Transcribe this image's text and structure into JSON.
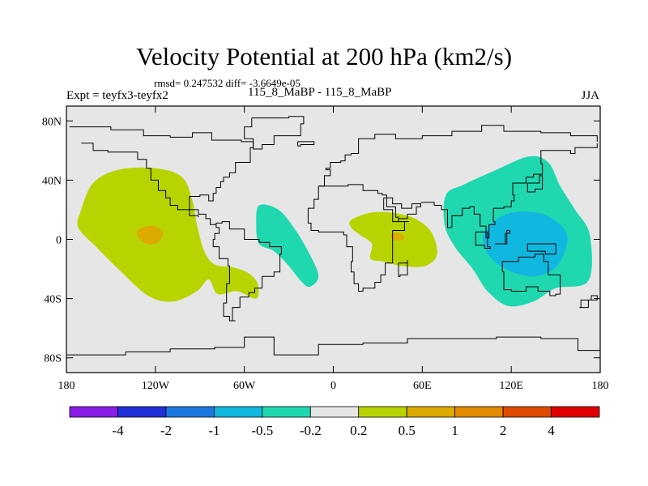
{
  "header": {
    "title": "Velocity Potential at 200 hPa (km2/s)",
    "stats": "rmsd= 0.247532 diff= -3.6649e-05",
    "expt": "Expt = teyfx3-teyfx2",
    "case": "115_8_MaBP - 115_8_MaBP",
    "season": "JJA"
  },
  "colors": {
    "ocean_bg": "#e6e6e6",
    "coast": "#000000",
    "pos_0_2_0_5": "#b8d400",
    "pos_0_5_1": "#ddaa00",
    "pos_1_2": "#e28a00",
    "neg_0_2_0_5": "#20d8b0",
    "neg_0_5_1": "#10b8e0"
  },
  "chart_data": {
    "type": "heatmap",
    "title": "Velocity Potential at 200 hPa (km2/s)",
    "xlabel": "",
    "ylabel": "",
    "xlim": [
      -180,
      180
    ],
    "ylim": [
      -90,
      90
    ],
    "x_ticks": [
      {
        "value": -180,
        "label": "180"
      },
      {
        "value": -120,
        "label": "120W"
      },
      {
        "value": -60,
        "label": "60W"
      },
      {
        "value": 0,
        "label": "0"
      },
      {
        "value": 60,
        "label": "60E"
      },
      {
        "value": 120,
        "label": "120E"
      },
      {
        "value": 180,
        "label": "180"
      }
    ],
    "y_ticks": [
      {
        "value": 80,
        "label": "80N"
      },
      {
        "value": 40,
        "label": "40N"
      },
      {
        "value": 0,
        "label": "0"
      },
      {
        "value": -40,
        "label": "40S"
      },
      {
        "value": -80,
        "label": "80S"
      }
    ],
    "colorbar": {
      "colors": [
        "#8a1ee8",
        "#2030d8",
        "#1c78e0",
        "#10b8e0",
        "#20d8b0",
        "#e6e6e6",
        "#b8d400",
        "#ddaa00",
        "#e28a00",
        "#e04a00",
        "#e00000"
      ],
      "labels": [
        "-4",
        "-2",
        "-1",
        "-0.5",
        "-0.2",
        "0.2",
        "0.5",
        "1",
        "2",
        "4"
      ]
    },
    "regions": [
      {
        "name": "positive-anomaly-pacific",
        "level": "0.2 to 0.5",
        "color": "#b8d400",
        "points": [
          [
            -170,
            20
          ],
          [
            -162,
            38
          ],
          [
            -145,
            47
          ],
          [
            -120,
            48
          ],
          [
            -102,
            42
          ],
          [
            -95,
            26
          ],
          [
            -92,
            10
          ],
          [
            -87,
            -8
          ],
          [
            -80,
            -17
          ],
          [
            -67,
            -19
          ],
          [
            -57,
            -23
          ],
          [
            -51,
            -30
          ],
          [
            -52,
            -40
          ],
          [
            -65,
            -35
          ],
          [
            -78,
            -37
          ],
          [
            -84,
            -27
          ],
          [
            -92,
            -35
          ],
          [
            -108,
            -42
          ],
          [
            -125,
            -38
          ],
          [
            -145,
            -20
          ],
          [
            -160,
            -5
          ],
          [
            -172,
            8
          ]
        ]
      },
      {
        "name": "positive-anomaly-pacific-core",
        "level": "0.5 to 1",
        "color": "#ddaa00",
        "points": [
          [
            -131,
            7
          ],
          [
            -122,
            9
          ],
          [
            -115,
            5
          ],
          [
            -118,
            -2
          ],
          [
            -126,
            -3
          ],
          [
            -132,
            2
          ]
        ]
      },
      {
        "name": "negative-anomaly-atlantic",
        "level": "-0.5 to -0.2",
        "color": "#20d8b0",
        "points": [
          [
            -50,
            23
          ],
          [
            -37,
            20
          ],
          [
            -26,
            7
          ],
          [
            -16,
            -10
          ],
          [
            -10,
            -25
          ],
          [
            -16,
            -32
          ],
          [
            -22,
            -28
          ],
          [
            -30,
            -18
          ],
          [
            -40,
            -8
          ],
          [
            -50,
            -3
          ],
          [
            -52,
            10
          ]
        ]
      },
      {
        "name": "positive-anomaly-africa",
        "level": "0.2 to 0.5",
        "color": "#b8d400",
        "points": [
          [
            12,
            13
          ],
          [
            25,
            18
          ],
          [
            40,
            18
          ],
          [
            55,
            14
          ],
          [
            66,
            5
          ],
          [
            70,
            -10
          ],
          [
            62,
            -18
          ],
          [
            46,
            -18
          ],
          [
            34,
            -15
          ],
          [
            25,
            -13
          ],
          [
            26,
            -3
          ],
          [
            18,
            3
          ],
          [
            12,
            8
          ]
        ]
      },
      {
        "name": "positive-anomaly-africa-core",
        "level": "0.5 to 1",
        "color": "#ddaa00",
        "points": [
          [
            40,
            4
          ],
          [
            45,
            4
          ],
          [
            48,
            1
          ],
          [
            44,
            -1
          ],
          [
            39,
            1
          ]
        ]
      },
      {
        "name": "negative-anomaly-asia",
        "level": "-0.5 to -0.2",
        "color": "#20d8b0",
        "points": [
          [
            88,
            37
          ],
          [
            110,
            47
          ],
          [
            132,
            56
          ],
          [
            145,
            52
          ],
          [
            153,
            36
          ],
          [
            163,
            20
          ],
          [
            173,
            3
          ],
          [
            172,
            -28
          ],
          [
            150,
            -33
          ],
          [
            135,
            -42
          ],
          [
            118,
            -45
          ],
          [
            104,
            -35
          ],
          [
            94,
            -20
          ],
          [
            82,
            -5
          ],
          [
            75,
            10
          ],
          [
            76,
            30
          ]
        ]
      },
      {
        "name": "negative-anomaly-asia-core",
        "level": "-1 to -0.5",
        "color": "#10b8e0",
        "points": [
          [
            108,
            12
          ],
          [
            120,
            18
          ],
          [
            138,
            18
          ],
          [
            152,
            11
          ],
          [
            158,
            0
          ],
          [
            151,
            -18
          ],
          [
            136,
            -25
          ],
          [
            118,
            -21
          ],
          [
            105,
            -11
          ],
          [
            101,
            2
          ]
        ]
      }
    ],
    "coastlines": [
      [
        [
          -178,
          76
        ],
        [
          -150,
          74
        ],
        [
          -128,
          70
        ],
        [
          -110,
          69
        ],
        [
          -95,
          72
        ],
        [
          -82,
          67
        ],
        [
          -62,
          66
        ],
        [
          -54,
          62
        ],
        [
          -56,
          52
        ],
        [
          -66,
          45
        ],
        [
          -70,
          42
        ],
        [
          -74,
          39
        ],
        [
          -76,
          35
        ],
        [
          -79,
          31
        ],
        [
          -81,
          26
        ],
        [
          -84,
          30
        ],
        [
          -90,
          29
        ],
        [
          -97,
          25
        ],
        [
          -97,
          20
        ],
        [
          -91,
          17
        ],
        [
          -86,
          14
        ],
        [
          -83,
          10
        ],
        [
          -79,
          8
        ],
        [
          -77,
          4
        ],
        [
          -80,
          0
        ],
        [
          -81,
          -5
        ],
        [
          -77,
          -13
        ],
        [
          -71,
          -18
        ],
        [
          -70,
          -30
        ],
        [
          -72,
          -43
        ],
        [
          -74,
          -52
        ],
        [
          -70,
          -55
        ],
        [
          -66,
          -55
        ],
        [
          -68,
          -46
        ],
        [
          -63,
          -39
        ],
        [
          -57,
          -36
        ],
        [
          -53,
          -33
        ],
        [
          -48,
          -25
        ],
        [
          -40,
          -22
        ],
        [
          -36,
          -10
        ],
        [
          -35,
          -5
        ],
        [
          -43,
          -2
        ],
        [
          -50,
          0
        ],
        [
          -60,
          7
        ],
        [
          -70,
          12
        ],
        [
          -75,
          11
        ],
        [
          -79,
          9
        ]
      ],
      [
        [
          -170,
          65
        ],
        [
          -162,
          60
        ],
        [
          -152,
          59
        ],
        [
          -140,
          59
        ],
        [
          -132,
          54
        ],
        [
          -126,
          48
        ],
        [
          -123,
          40
        ],
        [
          -118,
          33
        ],
        [
          -113,
          28
        ],
        [
          -110,
          23
        ],
        [
          -105,
          20
        ],
        [
          -97,
          16
        ],
        [
          -91,
          15
        ]
      ],
      [
        [
          -55,
          82
        ],
        [
          -30,
          83
        ],
        [
          -20,
          78
        ],
        [
          -22,
          70
        ],
        [
          -40,
          64
        ],
        [
          -48,
          61
        ],
        [
          -54,
          68
        ],
        [
          -60,
          76
        ],
        [
          -55,
          82
        ]
      ],
      [
        [
          -24,
          66
        ],
        [
          -14,
          66
        ],
        [
          -13,
          64
        ],
        [
          -22,
          63
        ],
        [
          -24,
          66
        ]
      ],
      [
        [
          -10,
          36
        ],
        [
          -6,
          43
        ],
        [
          -2,
          47
        ],
        [
          -5,
          48
        ],
        [
          -2,
          52
        ],
        [
          5,
          53
        ],
        [
          8,
          57
        ],
        [
          12,
          58
        ],
        [
          17,
          68
        ],
        [
          28,
          71
        ],
        [
          42,
          68
        ],
        [
          60,
          70
        ],
        [
          80,
          73
        ],
        [
          100,
          77
        ],
        [
          115,
          73
        ],
        [
          140,
          72
        ],
        [
          160,
          70
        ],
        [
          178,
          66
        ]
      ],
      [
        [
          -10,
          36
        ],
        [
          0,
          36
        ],
        [
          10,
          37
        ],
        [
          20,
          33
        ],
        [
          30,
          31
        ],
        [
          33,
          30
        ],
        [
          36,
          22
        ],
        [
          42,
          15
        ],
        [
          44,
          12
        ],
        [
          51,
          12
        ],
        [
          48,
          6
        ],
        [
          40,
          -3
        ],
        [
          40,
          -16
        ],
        [
          35,
          -24
        ],
        [
          32,
          -29
        ],
        [
          28,
          -33
        ],
        [
          20,
          -35
        ],
        [
          17,
          -30
        ],
        [
          14,
          -22
        ],
        [
          12,
          -15
        ],
        [
          13,
          -5
        ],
        [
          9,
          3
        ],
        [
          7,
          5
        ],
        [
          0,
          5
        ],
        [
          -5,
          5
        ],
        [
          -10,
          6
        ],
        [
          -15,
          11
        ],
        [
          -17,
          16
        ],
        [
          -17,
          21
        ],
        [
          -13,
          27
        ],
        [
          -10,
          30
        ],
        [
          -10,
          36
        ]
      ],
      [
        [
          44,
          -16
        ],
        [
          50,
          -14
        ],
        [
          50,
          -24
        ],
        [
          45,
          -25
        ],
        [
          44,
          -16
        ]
      ],
      [
        [
          34,
          28
        ],
        [
          40,
          24
        ],
        [
          46,
          21
        ],
        [
          53,
          24
        ],
        [
          59,
          22
        ],
        [
          56,
          17
        ],
        [
          50,
          14
        ],
        [
          44,
          12
        ],
        [
          40,
          20
        ],
        [
          34,
          28
        ]
      ],
      [
        [
          59,
          25
        ],
        [
          65,
          25
        ],
        [
          68,
          23
        ],
        [
          73,
          20
        ],
        [
          77,
          8
        ],
        [
          80,
          13
        ],
        [
          80,
          16
        ],
        [
          87,
          21
        ],
        [
          92,
          22
        ],
        [
          95,
          17
        ],
        [
          99,
          9
        ],
        [
          103,
          1
        ],
        [
          105,
          10
        ],
        [
          109,
          12
        ],
        [
          108,
          17
        ],
        [
          108,
          21
        ],
        [
          115,
          22
        ],
        [
          120,
          26
        ],
        [
          122,
          30
        ],
        [
          121,
          38
        ],
        [
          126,
          38
        ],
        [
          130,
          42
        ],
        [
          135,
          44
        ],
        [
          141,
          51
        ],
        [
          140,
          60
        ],
        [
          152,
          60
        ],
        [
          160,
          58
        ],
        [
          163,
          62
        ],
        [
          178,
          65
        ]
      ],
      [
        [
          96,
          5
        ],
        [
          104,
          -5
        ],
        [
          106,
          -6
        ],
        [
          102,
          -4
        ],
        [
          96,
          5
        ]
      ],
      [
        [
          109,
          -3
        ],
        [
          116,
          4
        ],
        [
          119,
          6
        ],
        [
          117,
          -3
        ],
        [
          110,
          -3
        ]
      ],
      [
        [
          131,
          32
        ],
        [
          136,
          34
        ],
        [
          141,
          38
        ],
        [
          141,
          43
        ],
        [
          139,
          38
        ],
        [
          131,
          32
        ]
      ],
      [
        [
          114,
          -22
        ],
        [
          115,
          -34
        ],
        [
          120,
          -35
        ],
        [
          130,
          -32
        ],
        [
          138,
          -35
        ],
        [
          146,
          -38
        ],
        [
          150,
          -37
        ],
        [
          153,
          -28
        ],
        [
          153,
          -24
        ],
        [
          145,
          -15
        ],
        [
          142,
          -10
        ],
        [
          136,
          -12
        ],
        [
          131,
          -12
        ],
        [
          125,
          -15
        ],
        [
          114,
          -22
        ]
      ],
      [
        [
          131,
          -3
        ],
        [
          141,
          -3
        ],
        [
          150,
          -10
        ],
        [
          143,
          -8
        ],
        [
          131,
          -3
        ]
      ],
      [
        [
          166,
          -46
        ],
        [
          172,
          -41
        ],
        [
          178,
          -38
        ],
        [
          174,
          -41
        ],
        [
          167,
          -46
        ]
      ],
      [
        [
          -180,
          -78
        ],
        [
          -140,
          -76
        ],
        [
          -110,
          -74
        ],
        [
          -80,
          -73
        ],
        [
          -60,
          -66
        ],
        [
          -40,
          -78
        ],
        [
          -10,
          -71
        ],
        [
          20,
          -70
        ],
        [
          50,
          -67
        ],
        [
          80,
          -67
        ],
        [
          110,
          -66
        ],
        [
          140,
          -67
        ],
        [
          165,
          -75
        ],
        [
          180,
          -78
        ]
      ]
    ]
  }
}
